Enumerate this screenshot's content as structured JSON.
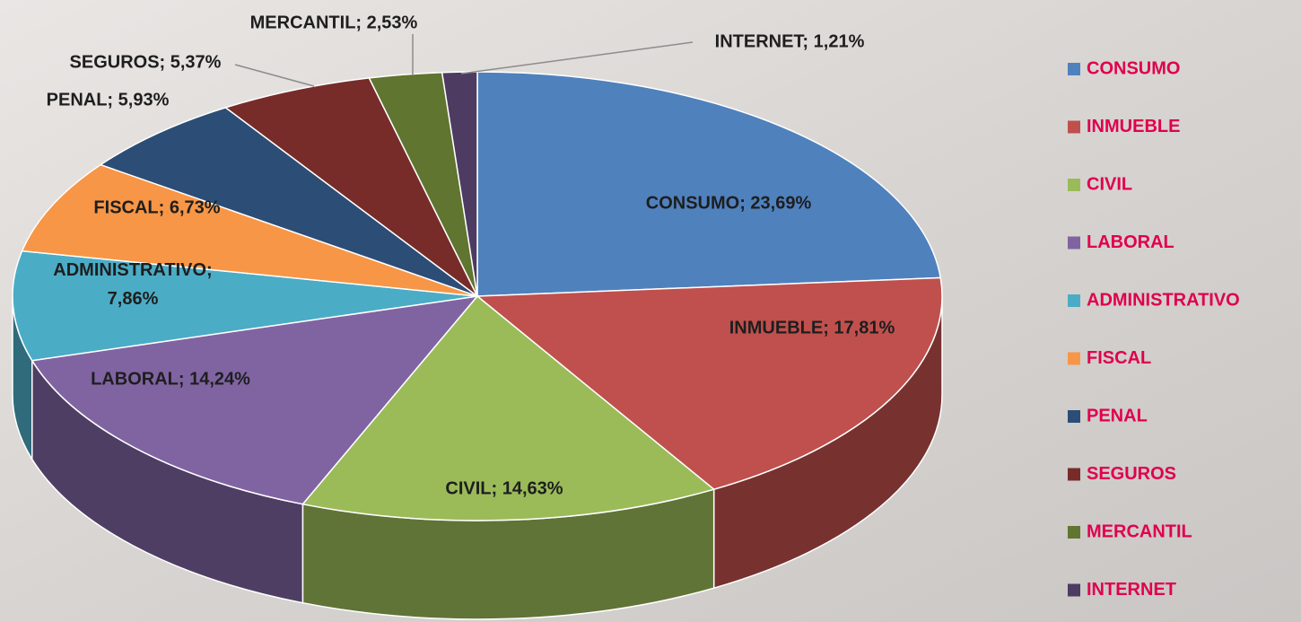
{
  "chart_data": {
    "type": "pie3d",
    "categories": [
      "CONSUMO",
      "INMUEBLE",
      "CIVIL",
      "LABORAL",
      "ADMINISTRATIVO",
      "FISCAL",
      "PENAL",
      "SEGUROS",
      "MERCANTIL",
      "INTERNET"
    ],
    "values": [
      23.69,
      17.81,
      14.63,
      14.24,
      7.86,
      6.73,
      5.93,
      5.37,
      2.53,
      1.21
    ],
    "value_labels": [
      "CONSUMO; 23,69%",
      "INMUEBLE; 17,81%",
      "CIVIL; 14,63%",
      "LABORAL; 14,24%",
      "ADMINISTRATIVO; 7,86%",
      "FISCAL; 6,73%",
      "PENAL; 5,93%",
      "SEGUROS; 5,37%",
      "MERCANTIL; 2,53%",
      "INTERNET; 1,21%"
    ],
    "colors": [
      "#4f81bd",
      "#c0504d",
      "#9bbb59",
      "#8064a2",
      "#4bacc6",
      "#f79646",
      "#2c4d75",
      "#772c2a",
      "#5f7530",
      "#4d3b62"
    ],
    "legend": "right",
    "legend_text_color": "#e0004d"
  }
}
